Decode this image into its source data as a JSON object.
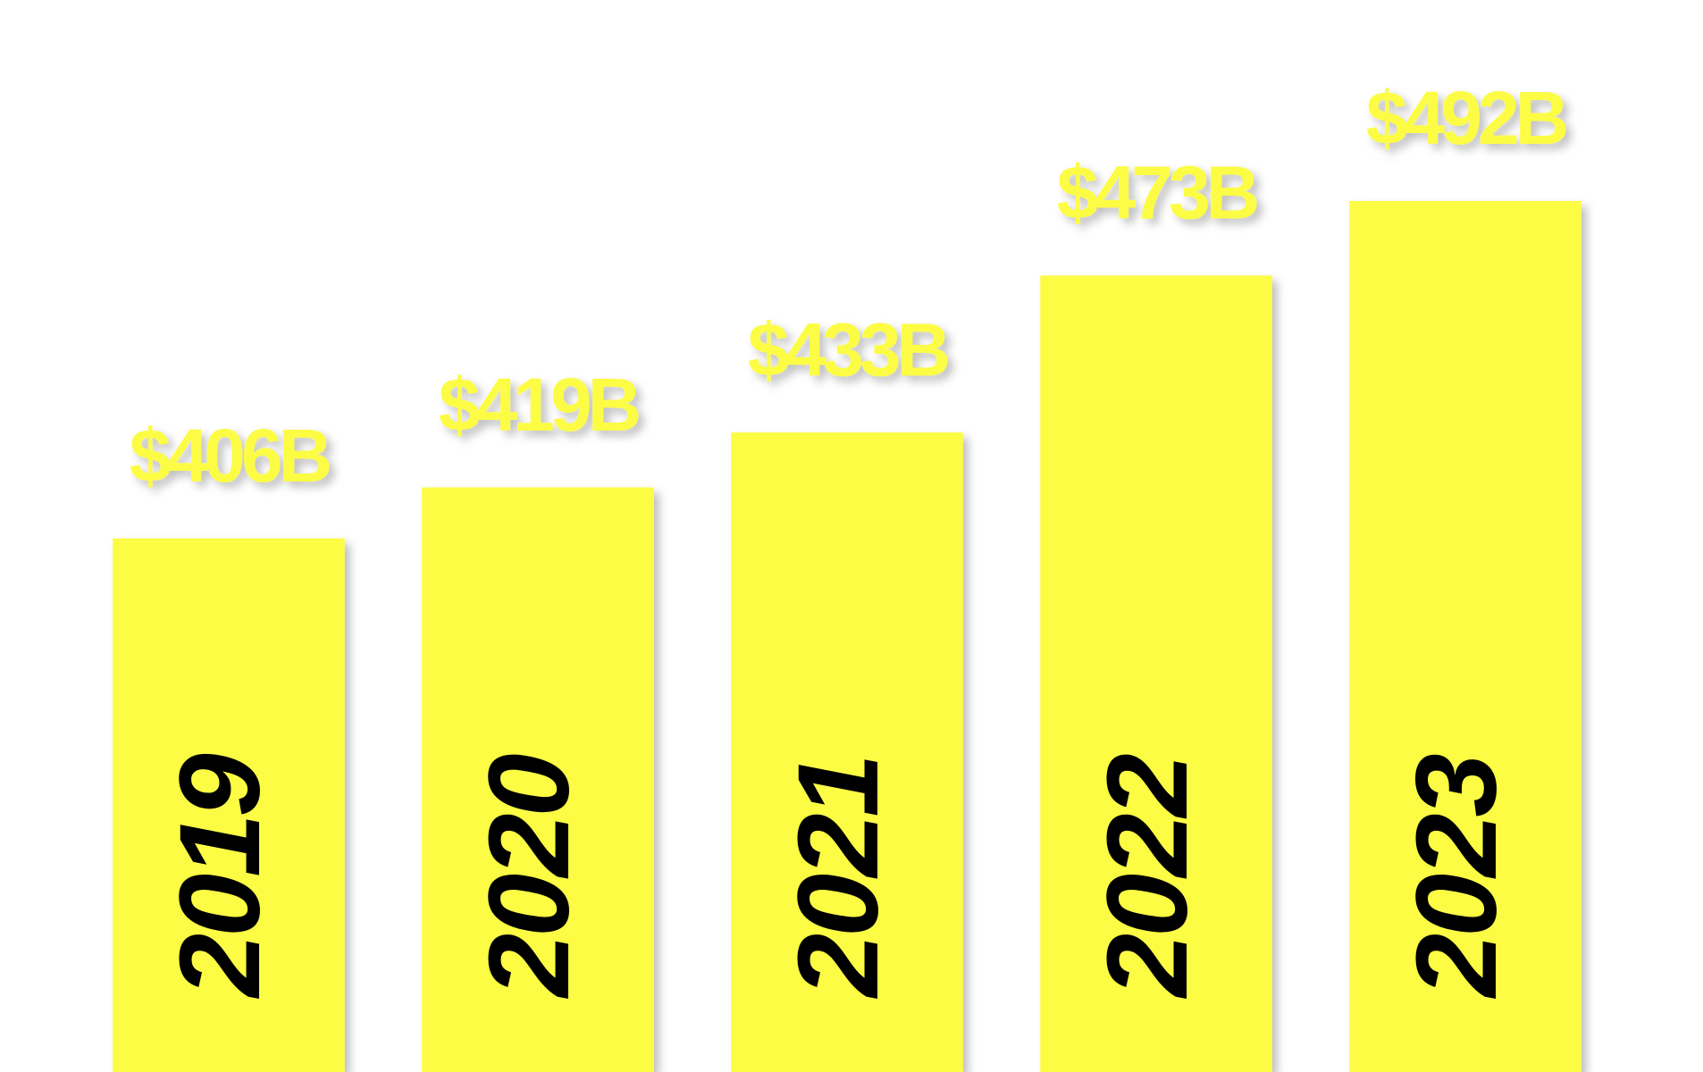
{
  "chart_data": {
    "type": "bar",
    "categories": [
      "2019",
      "2020",
      "2021",
      "2022",
      "2023"
    ],
    "values": [
      406,
      419,
      433,
      473,
      492
    ],
    "value_labels": [
      "$406B",
      "$419B",
      "$433B",
      "$473B",
      "$492B"
    ],
    "color": "#fcfc44",
    "ylim": [
      270,
      520
    ]
  }
}
